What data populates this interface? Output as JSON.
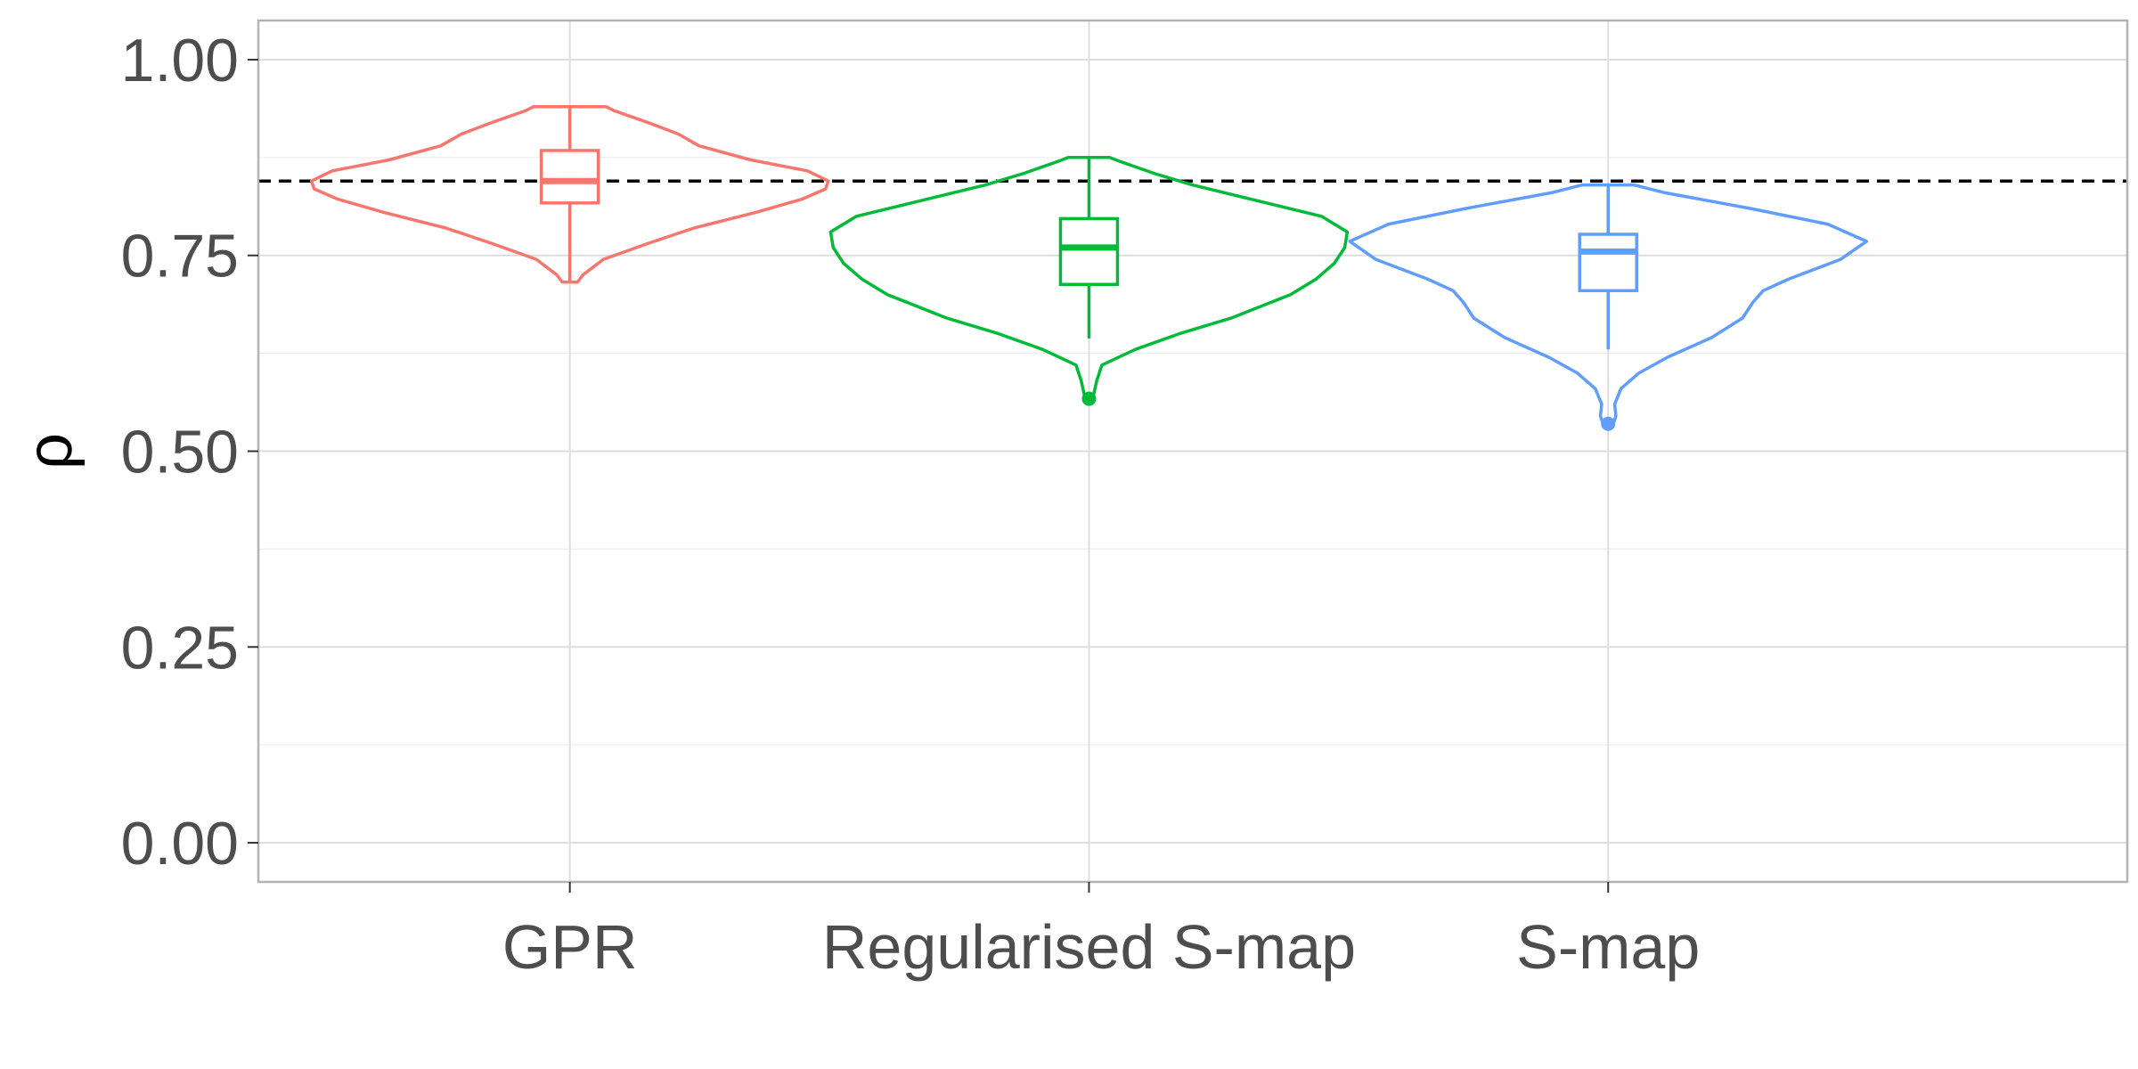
{
  "chart_data": {
    "type": "violin",
    "categories": [
      "GPR",
      "Regularised S-map",
      "S-map"
    ],
    "xlabel": "",
    "ylabel": "ρ",
    "ylim": [
      -0.05,
      1.05
    ],
    "yticks": [
      0.0,
      0.25,
      0.5,
      0.75,
      1.0
    ],
    "ytick_labels": [
      "0.00",
      "0.25",
      "0.50",
      "0.75",
      "1.00"
    ],
    "grid": true,
    "reference_line": {
      "y": 0.845,
      "style": "dashed",
      "color": "#000000"
    },
    "series": [
      {
        "category": "GPR",
        "color": "#F8766D",
        "box": {
          "q1": 0.817,
          "median": 0.845,
          "q3": 0.884,
          "whisker_low": 0.716,
          "whisker_high": 0.94
        },
        "outliers": [],
        "violin": [
          [
            0.716,
            0.03
          ],
          [
            0.725,
            0.05
          ],
          [
            0.745,
            0.13
          ],
          [
            0.765,
            0.3
          ],
          [
            0.785,
            0.48
          ],
          [
            0.805,
            0.72
          ],
          [
            0.822,
            0.9
          ],
          [
            0.835,
            0.99
          ],
          [
            0.845,
            1.0
          ],
          [
            0.858,
            0.92
          ],
          [
            0.872,
            0.7
          ],
          [
            0.89,
            0.5
          ],
          [
            0.905,
            0.42
          ],
          [
            0.92,
            0.3
          ],
          [
            0.935,
            0.17
          ],
          [
            0.94,
            0.14
          ]
        ]
      },
      {
        "category": "Regularised S-map",
        "color": "#00BA38",
        "box": {
          "q1": 0.713,
          "median": 0.76,
          "q3": 0.797,
          "whisker_low": 0.644,
          "whisker_high": 0.875
        },
        "outliers": [
          0.567
        ],
        "violin": [
          [
            0.567,
            0.015
          ],
          [
            0.575,
            0.02
          ],
          [
            0.59,
            0.03
          ],
          [
            0.61,
            0.05
          ],
          [
            0.63,
            0.18
          ],
          [
            0.65,
            0.35
          ],
          [
            0.67,
            0.55
          ],
          [
            0.7,
            0.78
          ],
          [
            0.72,
            0.88
          ],
          [
            0.74,
            0.95
          ],
          [
            0.76,
            0.99
          ],
          [
            0.78,
            1.0
          ],
          [
            0.8,
            0.9
          ],
          [
            0.82,
            0.65
          ],
          [
            0.84,
            0.4
          ],
          [
            0.855,
            0.25
          ],
          [
            0.87,
            0.12
          ],
          [
            0.875,
            0.08
          ]
        ]
      },
      {
        "category": "S-map",
        "color": "#619CFF",
        "box": {
          "q1": 0.705,
          "median": 0.755,
          "q3": 0.777,
          "whisker_low": 0.63,
          "whisker_high": 0.84
        },
        "outliers": [
          0.535
        ],
        "violin": [
          [
            0.535,
            0.02
          ],
          [
            0.545,
            0.03
          ],
          [
            0.56,
            0.025
          ],
          [
            0.58,
            0.05
          ],
          [
            0.6,
            0.12
          ],
          [
            0.62,
            0.23
          ],
          [
            0.645,
            0.4
          ],
          [
            0.67,
            0.52
          ],
          [
            0.69,
            0.56
          ],
          [
            0.705,
            0.6
          ],
          [
            0.72,
            0.7
          ],
          [
            0.745,
            0.9
          ],
          [
            0.768,
            1.0
          ],
          [
            0.79,
            0.85
          ],
          [
            0.81,
            0.55
          ],
          [
            0.83,
            0.22
          ],
          [
            0.84,
            0.1
          ]
        ]
      }
    ]
  }
}
